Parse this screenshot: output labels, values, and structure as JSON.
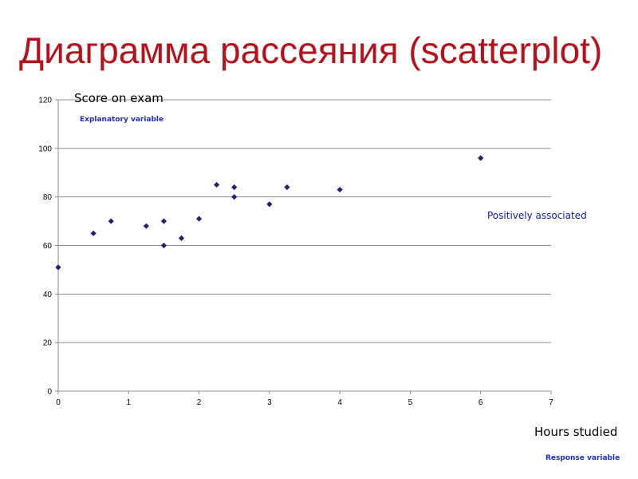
{
  "slide": {
    "title": "Диаграмма рассеяния (scatterplot)"
  },
  "annotations": {
    "explanatory": "Explanatory variable",
    "response": "Response variable",
    "association": "Positively associated"
  },
  "colors": {
    "title": "#b5121b",
    "marker": "#2e1a6e",
    "gridline": "#8c8c8c",
    "annotation": "#1f2fbf"
  },
  "chart_data": {
    "type": "scatter",
    "title": "",
    "xlabel": "Hours studied",
    "ylabel": "Score on exam",
    "xlim": [
      0,
      7
    ],
    "ylim": [
      0,
      120
    ],
    "x_ticks": [
      0,
      1,
      2,
      3,
      4,
      5,
      6,
      7
    ],
    "y_ticks": [
      0,
      20,
      40,
      60,
      80,
      100,
      120
    ],
    "grid": "horizontal",
    "marker": "diamond",
    "points": [
      {
        "x": 0,
        "y": 51
      },
      {
        "x": 0.5,
        "y": 65
      },
      {
        "x": 0.75,
        "y": 70
      },
      {
        "x": 1.25,
        "y": 68
      },
      {
        "x": 1.5,
        "y": 70
      },
      {
        "x": 1.5,
        "y": 60
      },
      {
        "x": 1.75,
        "y": 63
      },
      {
        "x": 2,
        "y": 71
      },
      {
        "x": 2.25,
        "y": 85
      },
      {
        "x": 2.5,
        "y": 84
      },
      {
        "x": 2.5,
        "y": 80
      },
      {
        "x": 3,
        "y": 77
      },
      {
        "x": 3.25,
        "y": 84
      },
      {
        "x": 4,
        "y": 83
      },
      {
        "x": 6,
        "y": 96
      }
    ]
  }
}
